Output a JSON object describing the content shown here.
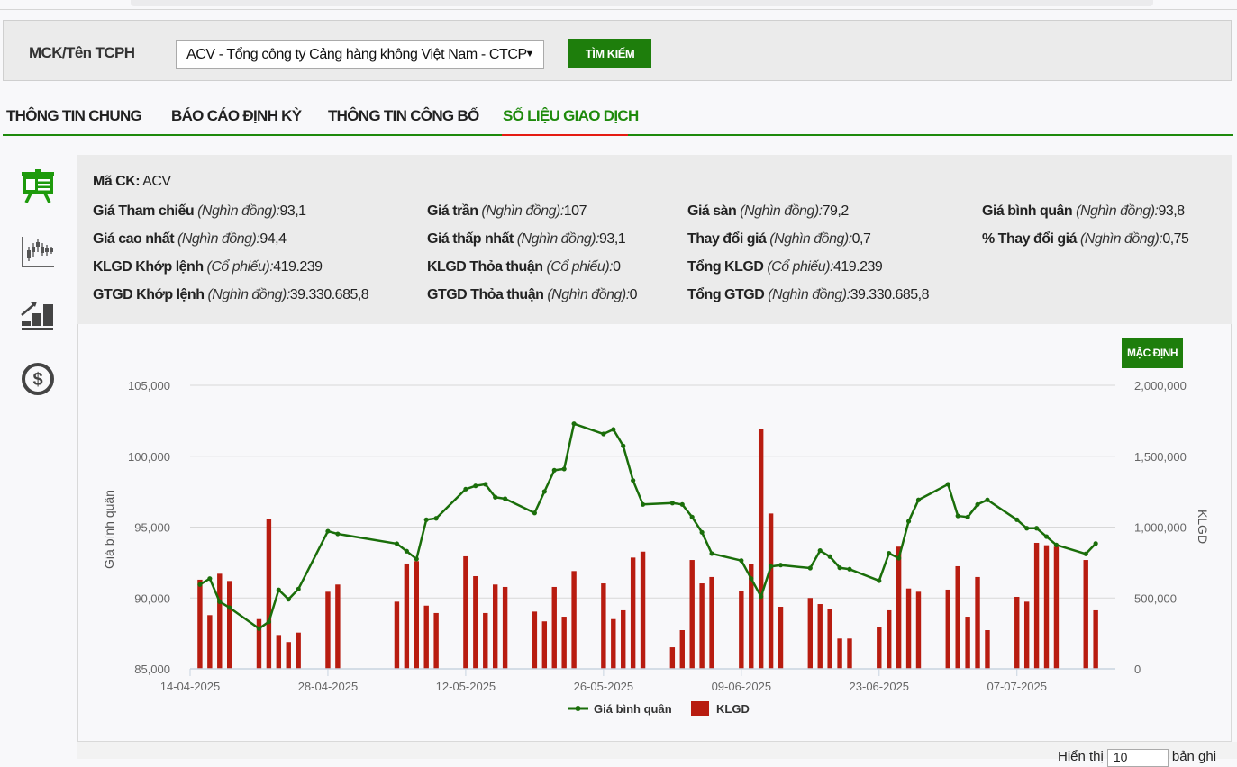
{
  "search": {
    "label": "MCK/Tên TCPH",
    "selected_company": "ACV - Tổng công ty Cảng hàng không Việt Nam - CTCP",
    "button_label": "TÌM KIẾM"
  },
  "tabs": [
    {
      "label": "THÔNG TIN CHUNG",
      "active": false
    },
    {
      "label": "BÁO CÁO ĐỊNH KỲ",
      "active": false
    },
    {
      "label": "THÔNG TIN CÔNG BỐ",
      "active": false
    },
    {
      "label": "SỐ LIỆU GIAO DỊCH",
      "active": true
    }
  ],
  "side_icons": [
    "presentation-board-icon",
    "candlestick-chart-icon",
    "growth-bar-chart-icon",
    "dollar-coin-icon"
  ],
  "info": {
    "ma_ck": {
      "label": "Mã CK:",
      "value": "ACV"
    },
    "fields": [
      {
        "label": "Giá Tham chiếu",
        "unit": "(Nghìn đồng):",
        "value": "93,1"
      },
      {
        "label": "Giá trần",
        "unit": "(Nghìn đồng):",
        "value": "107"
      },
      {
        "label": "Giá sàn",
        "unit": "(Nghìn đồng):",
        "value": "79,2"
      },
      {
        "label": "Giá bình quân",
        "unit": "(Nghìn đồng):",
        "value": "93,8"
      },
      {
        "label": "Giá cao nhất",
        "unit": "(Nghìn đồng):",
        "value": "94,4"
      },
      {
        "label": "Giá thấp nhất",
        "unit": "(Nghìn đồng):",
        "value": "93,1"
      },
      {
        "label": "Thay đổi giá",
        "unit": "(Nghìn đồng):",
        "value": "0,7"
      },
      {
        "label": "% Thay đổi giá",
        "unit": "(Nghìn đồng):",
        "value": "0,75"
      },
      {
        "label": "KLGD Khớp lệnh",
        "unit": "(Cổ phiếu):",
        "value": "419.239"
      },
      {
        "label": "KLGD Thỏa thuận",
        "unit": "(Cổ phiếu):",
        "value": "0"
      },
      {
        "label": "Tổng KLGD",
        "unit": "(Cổ phiếu):",
        "value": "419.239"
      },
      {
        "label": "GTGD Khớp lệnh",
        "unit": "(Nghìn đồng):",
        "value": "39.330.685,8"
      },
      {
        "label": "GTGD Thỏa thuận",
        "unit": "(Nghìn đồng):",
        "value": "0"
      },
      {
        "label": "Tổng GTGD",
        "unit": "(Nghìn đồng):",
        "value": "39.330.685,8"
      }
    ]
  },
  "chart_controls": {
    "reset_label": "MẶC ĐỊNH"
  },
  "paging": {
    "prefix": "Hiển thị",
    "page_size": "10",
    "suffix": "bản ghi"
  },
  "chart_data": {
    "type": "bar+line",
    "grid": true,
    "legend": "bottom-center",
    "colors": {
      "line": "#1a6e0a",
      "bar": "#b81c10"
    },
    "x_range": [
      "14-04-2025",
      "17-07-2025"
    ],
    "x_ticks": [
      "14-04-2025",
      "28-04-2025",
      "12-05-2025",
      "26-05-2025",
      "09-06-2025",
      "23-06-2025",
      "07-07-2025"
    ],
    "y_left": {
      "label": "Giá bình quân",
      "range": [
        85000,
        105000
      ],
      "ticks": [
        "85,000",
        "90,000",
        "95,000",
        "100,000",
        "105,000"
      ]
    },
    "y_right": {
      "label": "KLGD",
      "range": [
        0,
        2000000
      ],
      "ticks": [
        "0",
        "500,000",
        "1,000,000",
        "1,500,000",
        "2,000,000"
      ]
    },
    "dates": [
      "15-04-2025",
      "16-04-2025",
      "17-04-2025",
      "18-04-2025",
      "21-04-2025",
      "22-04-2025",
      "23-04-2025",
      "24-04-2025",
      "25-04-2025",
      "28-04-2025",
      "29-04-2025",
      "05-05-2025",
      "06-05-2025",
      "07-05-2025",
      "08-05-2025",
      "09-05-2025",
      "12-05-2025",
      "13-05-2025",
      "14-05-2025",
      "15-05-2025",
      "16-05-2025",
      "19-05-2025",
      "20-05-2025",
      "21-05-2025",
      "22-05-2025",
      "23-05-2025",
      "26-05-2025",
      "27-05-2025",
      "28-05-2025",
      "29-05-2025",
      "30-05-2025",
      "02-06-2025",
      "03-06-2025",
      "04-06-2025",
      "05-06-2025",
      "06-06-2025",
      "09-06-2025",
      "10-06-2025",
      "11-06-2025",
      "12-06-2025",
      "13-06-2025",
      "16-06-2025",
      "17-06-2025",
      "18-06-2025",
      "19-06-2025",
      "20-06-2025",
      "23-06-2025",
      "24-06-2025",
      "25-06-2025",
      "26-06-2025",
      "27-06-2025",
      "30-06-2025",
      "01-07-2025",
      "02-07-2025",
      "03-07-2025",
      "04-07-2025",
      "07-07-2025",
      "08-07-2025",
      "09-07-2025",
      "10-07-2025",
      "11-07-2025",
      "14-07-2025",
      "15-07-2025"
    ],
    "series": [
      {
        "name": "Giá bình quân",
        "type": "line",
        "axis": "left",
        "values": [
          90950,
          91370,
          89740,
          89320,
          87840,
          88320,
          90570,
          89910,
          90630,
          94710,
          94520,
          93830,
          93300,
          92750,
          95520,
          95620,
          97680,
          97910,
          98020,
          97110,
          97000,
          96000,
          97510,
          99010,
          99100,
          102290,
          101570,
          101890,
          100730,
          98290,
          96600,
          96700,
          96600,
          95710,
          94630,
          93130,
          92640,
          91370,
          90100,
          92220,
          92320,
          92110,
          93340,
          92920,
          92130,
          92030,
          91220,
          93150,
          92810,
          95410,
          96920,
          98020,
          95790,
          95710,
          96600,
          96920,
          95520,
          94920,
          94920,
          94330,
          93740,
          93110,
          93840
        ]
      },
      {
        "name": "KLGD",
        "type": "bar",
        "axis": "right",
        "values": [
          629000,
          379000,
          671000,
          620000,
          351000,
          1054000,
          239000,
          189000,
          256000,
          544000,
          595000,
          474000,
          743000,
          760000,
          446000,
          394000,
          794000,
          654000,
          394000,
          595000,
          578000,
          404000,
          335000,
          578000,
          368000,
          690000,
          603000,
          351000,
          413000,
          785000,
          827000,
          152000,
          273000,
          768000,
          603000,
          648000,
          550000,
          741000,
          1693000,
          1096000,
          438000,
          500000,
          457000,
          421000,
          214000,
          214000,
          292000,
          413000,
          862000,
          567000,
          544000,
          559000,
          724000,
          368000,
          648000,
          273000,
          508000,
          474000,
          889000,
          872000,
          862000,
          768000,
          413000
        ]
      }
    ]
  }
}
